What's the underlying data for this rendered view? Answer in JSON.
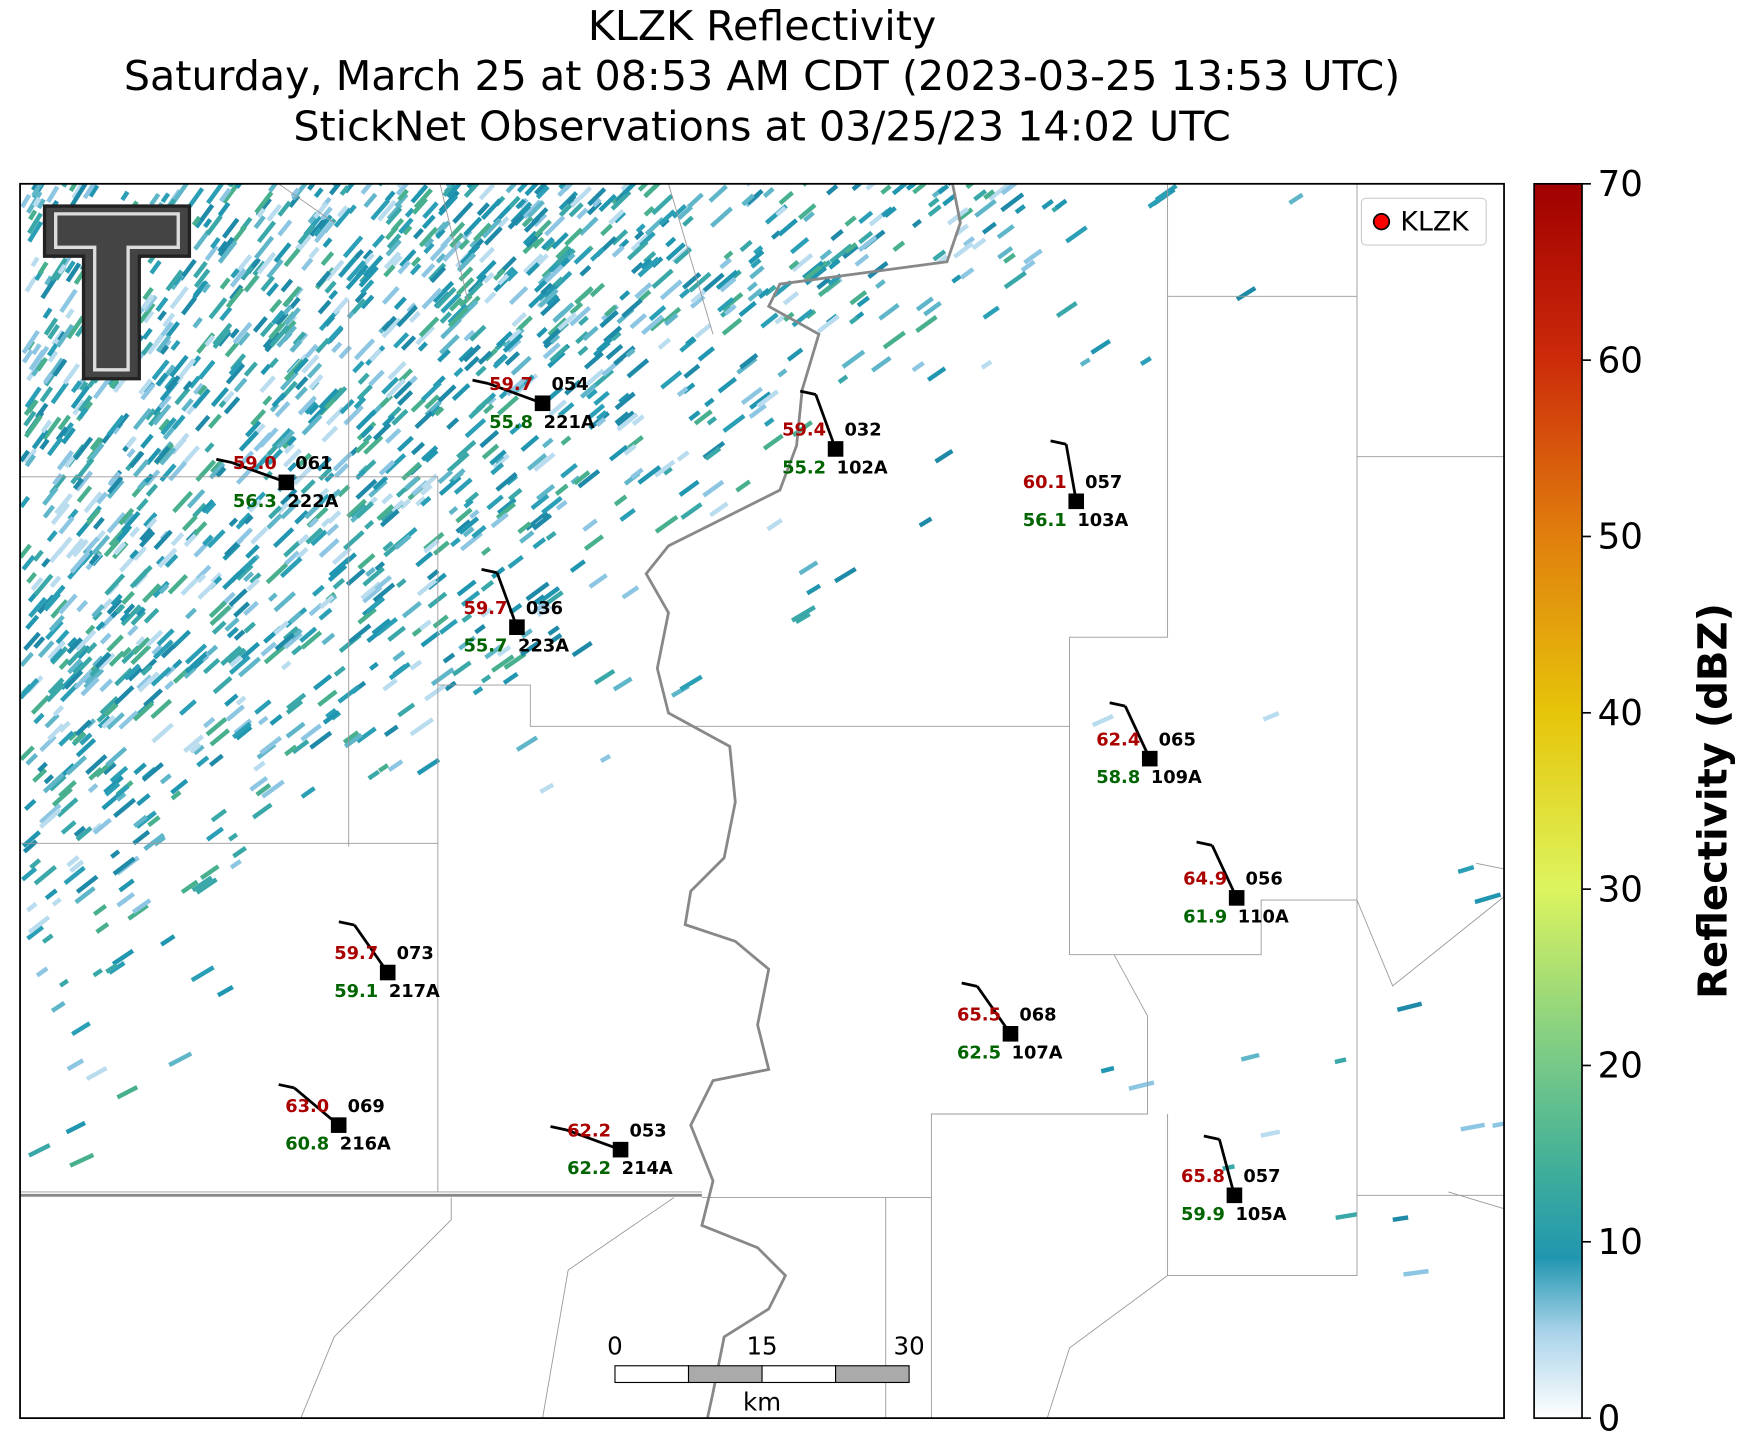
{
  "title": [
    "KLZK Reflectivity",
    "Saturday, March 25 at 08:53 AM CDT (2023-03-25 13:53 UTC)",
    "StickNet Observations at 03/25/23 14:02 UTC"
  ],
  "legend": {
    "label": "KLZK",
    "color": "#ff0000"
  },
  "colorbar": {
    "label": "Reflectivity (dBZ)",
    "lim": [
      0,
      70
    ],
    "ticks": [
      0,
      10,
      20,
      30,
      40,
      50,
      60,
      70
    ]
  },
  "scale_bar": {
    "ticks": [
      "0",
      "15",
      "30"
    ],
    "unit": "km"
  },
  "stations": [
    {
      "id": "222A",
      "temperature": "59.0",
      "dewpoint": "56.3",
      "pressure": "061"
    },
    {
      "id": "221A",
      "temperature": "59.7",
      "dewpoint": "55.8",
      "pressure": "054"
    },
    {
      "id": "102A",
      "temperature": "59.4",
      "dewpoint": "55.2",
      "pressure": "032"
    },
    {
      "id": "103A",
      "temperature": "60.1",
      "dewpoint": "56.1",
      "pressure": "057"
    },
    {
      "id": "223A",
      "temperature": "59.7",
      "dewpoint": "55.7",
      "pressure": "036"
    },
    {
      "id": "109A",
      "temperature": "62.4",
      "dewpoint": "58.8",
      "pressure": "065"
    },
    {
      "id": "110A",
      "temperature": "64.9",
      "dewpoint": "61.9",
      "pressure": "056"
    },
    {
      "id": "217A",
      "temperature": "59.7",
      "dewpoint": "59.1",
      "pressure": "073"
    },
    {
      "id": "107A",
      "temperature": "65.5",
      "dewpoint": "62.5",
      "pressure": "068"
    },
    {
      "id": "216A",
      "temperature": "63.0",
      "dewpoint": "60.8",
      "pressure": "069"
    },
    {
      "id": "214A",
      "temperature": "62.2",
      "dewpoint": "62.2",
      "pressure": "053"
    },
    {
      "id": "105A",
      "temperature": "65.8",
      "dewpoint": "59.9",
      "pressure": "057"
    }
  ]
}
